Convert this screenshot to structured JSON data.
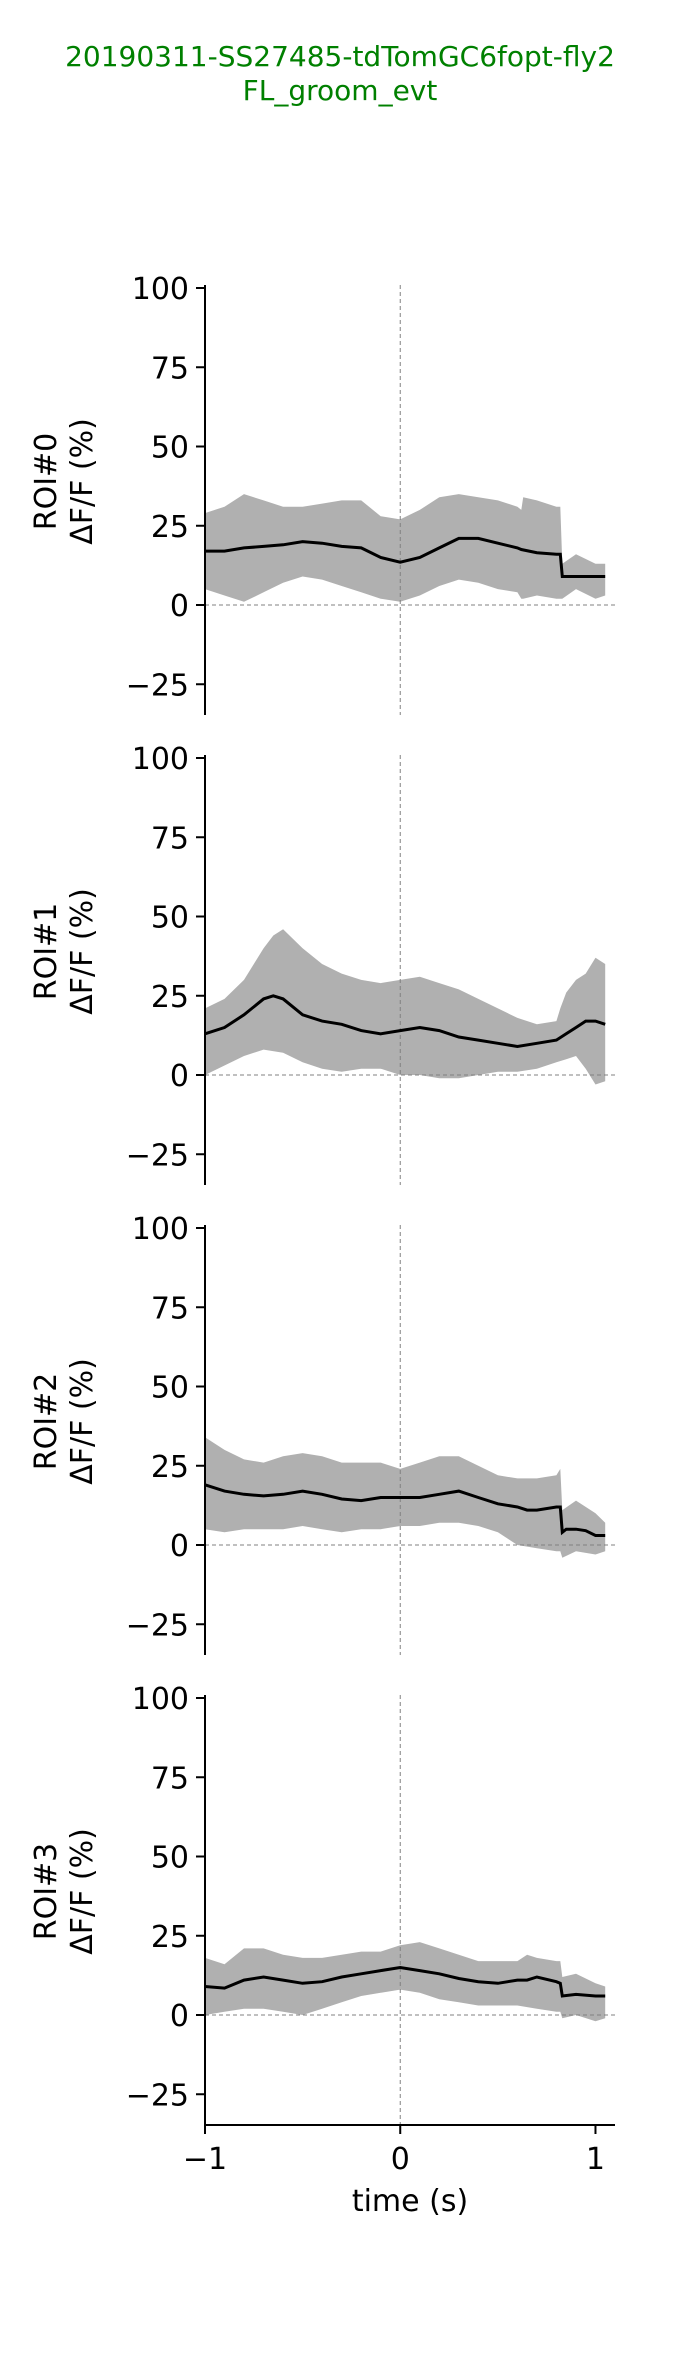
{
  "title": {
    "line1": "20190311-SS27485-tdTomGC6fopt-fly2",
    "line2": "FL_groom_evt"
  },
  "colors": {
    "title": "#008000",
    "band": "#b0b0b0",
    "mean": "#000000",
    "ref": "#808080"
  },
  "chart_data": {
    "type": "line",
    "xlabel": "time (s)",
    "xlim": [
      -1.0,
      1.1
    ],
    "xticks": [
      -1,
      0,
      1
    ],
    "xtick_labels": [
      "−1",
      "0",
      "1"
    ],
    "ylim": [
      -34,
      100
    ],
    "yticks": [
      100,
      75,
      50,
      25,
      0,
      -25
    ],
    "ytick_labels": [
      "100",
      "75",
      "50",
      "25",
      "0",
      "−25"
    ],
    "grid": false,
    "reference_lines": {
      "x": 0,
      "y": 0
    },
    "panels": [
      {
        "ylabel": "ROI#0\nΔF/F (%)",
        "mean": {
          "x": [
            -1.0,
            -0.9,
            -0.8,
            -0.7,
            -0.6,
            -0.5,
            -0.4,
            -0.3,
            -0.2,
            -0.1,
            0.0,
            0.1,
            0.2,
            0.3,
            0.4,
            0.5,
            0.6,
            0.62,
            0.7,
            0.8,
            0.82,
            0.83,
            0.9,
            1.0,
            1.05
          ],
          "y": [
            17,
            17,
            18,
            18.5,
            19,
            20,
            19.5,
            18.5,
            18,
            15,
            13.5,
            15,
            18,
            21,
            21,
            19.5,
            18,
            17.5,
            16.5,
            16,
            16,
            9,
            9,
            9,
            9
          ]
        },
        "upper": {
          "x": [
            -1.0,
            -0.9,
            -0.8,
            -0.7,
            -0.6,
            -0.5,
            -0.4,
            -0.3,
            -0.2,
            -0.1,
            0.0,
            0.1,
            0.2,
            0.3,
            0.4,
            0.5,
            0.6,
            0.62,
            0.63,
            0.7,
            0.8,
            0.82,
            0.83,
            0.9,
            1.0,
            1.05
          ],
          "y": [
            29,
            31,
            35,
            33,
            31,
            31,
            32,
            33,
            33,
            28,
            27,
            30,
            34,
            35,
            34,
            33,
            31,
            30,
            34,
            33,
            31,
            31,
            13,
            16,
            13,
            13
          ]
        },
        "lower": {
          "x": [
            -1.0,
            -0.9,
            -0.8,
            -0.7,
            -0.6,
            -0.5,
            -0.4,
            -0.3,
            -0.2,
            -0.1,
            0.0,
            0.1,
            0.2,
            0.3,
            0.4,
            0.5,
            0.6,
            0.62,
            0.63,
            0.7,
            0.8,
            0.82,
            0.83,
            0.9,
            1.0,
            1.05
          ],
          "y": [
            5,
            3,
            1,
            4,
            7,
            9,
            8,
            6,
            4,
            2,
            1,
            3,
            6,
            8,
            7,
            5,
            4,
            2,
            2,
            3,
            2,
            2,
            2,
            5,
            2,
            3
          ]
        }
      },
      {
        "ylabel": "ROI#1\nΔF/F (%)",
        "mean": {
          "x": [
            -1.0,
            -0.9,
            -0.8,
            -0.7,
            -0.65,
            -0.6,
            -0.5,
            -0.4,
            -0.3,
            -0.2,
            -0.1,
            0.0,
            0.1,
            0.2,
            0.3,
            0.4,
            0.5,
            0.6,
            0.7,
            0.8,
            0.85,
            0.9,
            0.95,
            1.0,
            1.05
          ],
          "y": [
            13,
            15,
            19,
            24,
            25,
            24,
            19,
            17,
            16,
            14,
            13,
            14,
            15,
            14,
            12,
            11,
            10,
            9,
            10,
            11,
            13,
            15,
            17,
            17,
            16
          ]
        },
        "upper": {
          "x": [
            -1.0,
            -0.9,
            -0.8,
            -0.7,
            -0.65,
            -0.6,
            -0.5,
            -0.4,
            -0.3,
            -0.2,
            -0.1,
            0.0,
            0.1,
            0.2,
            0.3,
            0.4,
            0.5,
            0.6,
            0.7,
            0.8,
            0.82,
            0.85,
            0.9,
            0.95,
            1.0,
            1.05
          ],
          "y": [
            21,
            24,
            30,
            40,
            44,
            46,
            40,
            35,
            32,
            30,
            29,
            30,
            31,
            29,
            27,
            24,
            21,
            18,
            16,
            17,
            21,
            26,
            30,
            32,
            37,
            35
          ]
        },
        "lower": {
          "x": [
            -1.0,
            -0.9,
            -0.8,
            -0.7,
            -0.6,
            -0.5,
            -0.4,
            -0.3,
            -0.2,
            -0.1,
            0.0,
            0.1,
            0.2,
            0.3,
            0.4,
            0.5,
            0.6,
            0.7,
            0.8,
            0.85,
            0.9,
            0.95,
            1.0,
            1.05
          ],
          "y": [
            0,
            3,
            6,
            8,
            7,
            4,
            2,
            1,
            2,
            2,
            0,
            0,
            -1,
            -1,
            0,
            1,
            1,
            2,
            4,
            5,
            6,
            2,
            -3,
            -2
          ]
        }
      },
      {
        "ylabel": "ROI#2\nΔF/F (%)",
        "mean": {
          "x": [
            -1.0,
            -0.9,
            -0.8,
            -0.7,
            -0.6,
            -0.5,
            -0.4,
            -0.3,
            -0.2,
            -0.1,
            0.0,
            0.1,
            0.2,
            0.3,
            0.4,
            0.5,
            0.6,
            0.65,
            0.7,
            0.8,
            0.82,
            0.83,
            0.85,
            0.9,
            0.95,
            1.0,
            1.05
          ],
          "y": [
            19,
            17,
            16,
            15.5,
            16,
            17,
            16,
            14.5,
            14,
            15,
            15,
            15,
            16,
            17,
            15,
            13,
            12,
            11,
            11,
            12,
            12,
            4,
            5,
            5,
            4.5,
            3,
            3
          ]
        },
        "upper": {
          "x": [
            -1.0,
            -0.9,
            -0.8,
            -0.7,
            -0.6,
            -0.5,
            -0.4,
            -0.3,
            -0.2,
            -0.1,
            0.0,
            0.1,
            0.2,
            0.3,
            0.4,
            0.5,
            0.6,
            0.7,
            0.8,
            0.82,
            0.83,
            0.9,
            1.0,
            1.05
          ],
          "y": [
            34,
            30,
            27,
            26,
            28,
            29,
            28,
            26,
            26,
            26,
            24,
            26,
            28,
            28,
            25,
            22,
            21,
            21,
            22,
            24,
            11,
            14,
            10,
            7
          ]
        },
        "lower": {
          "x": [
            -1.0,
            -0.9,
            -0.8,
            -0.7,
            -0.6,
            -0.5,
            -0.4,
            -0.3,
            -0.2,
            -0.1,
            0.0,
            0.1,
            0.2,
            0.3,
            0.4,
            0.5,
            0.6,
            0.7,
            0.8,
            0.82,
            0.83,
            0.9,
            1.0,
            1.05
          ],
          "y": [
            5,
            4,
            5,
            5,
            5,
            6,
            5,
            4,
            5,
            5,
            6,
            6,
            7,
            7,
            6,
            4,
            0,
            -1,
            -2,
            -2,
            -4,
            -2,
            -3,
            -2
          ]
        }
      },
      {
        "ylabel": "ROI#3\nΔF/F (%)",
        "mean": {
          "x": [
            -1.0,
            -0.9,
            -0.8,
            -0.7,
            -0.6,
            -0.5,
            -0.4,
            -0.3,
            -0.2,
            -0.1,
            0.0,
            0.1,
            0.2,
            0.3,
            0.4,
            0.5,
            0.6,
            0.65,
            0.7,
            0.8,
            0.82,
            0.83,
            0.9,
            1.0,
            1.05
          ],
          "y": [
            9,
            8.5,
            11,
            12,
            11,
            10,
            10.5,
            12,
            13,
            14,
            15,
            14,
            13,
            11.5,
            10.5,
            10,
            11,
            11,
            12,
            10.5,
            10,
            6,
            6.5,
            6,
            6
          ]
        },
        "upper": {
          "x": [
            -1.0,
            -0.9,
            -0.8,
            -0.7,
            -0.6,
            -0.5,
            -0.4,
            -0.3,
            -0.2,
            -0.1,
            0.0,
            0.1,
            0.2,
            0.3,
            0.4,
            0.5,
            0.6,
            0.65,
            0.7,
            0.8,
            0.82,
            0.83,
            0.9,
            1.0,
            1.05
          ],
          "y": [
            18,
            16,
            21,
            21,
            19,
            18,
            18,
            19,
            20,
            20,
            22,
            23,
            21,
            19,
            17,
            17,
            17,
            19,
            18,
            17,
            17,
            12,
            13,
            10,
            9
          ]
        },
        "lower": {
          "x": [
            -1.0,
            -0.9,
            -0.8,
            -0.7,
            -0.6,
            -0.5,
            -0.4,
            -0.3,
            -0.2,
            -0.1,
            0.0,
            0.1,
            0.2,
            0.3,
            0.4,
            0.5,
            0.6,
            0.7,
            0.8,
            0.82,
            0.83,
            0.9,
            1.0,
            1.05
          ],
          "y": [
            0,
            1,
            2,
            2,
            1,
            0,
            2,
            4,
            6,
            7,
            8,
            7,
            5,
            4,
            3,
            3,
            3,
            2,
            1,
            1,
            -1,
            0,
            -2,
            -1
          ]
        }
      }
    ]
  }
}
